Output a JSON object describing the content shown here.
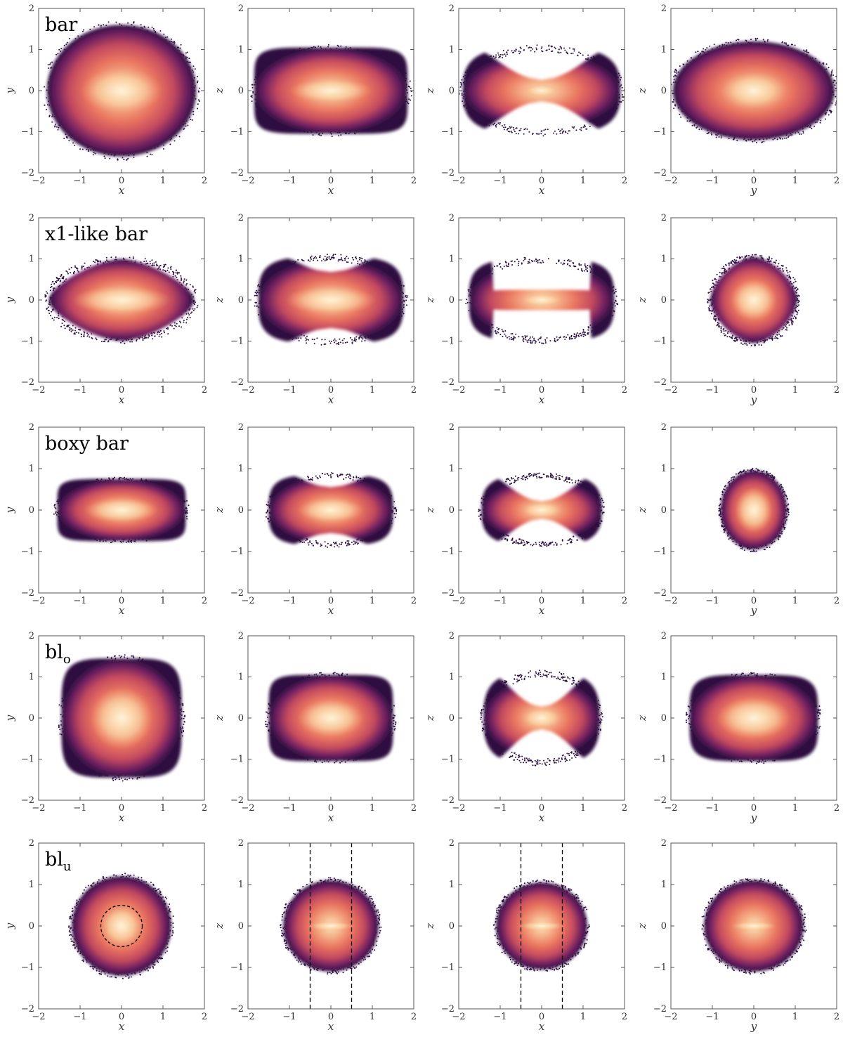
{
  "figure": {
    "colors": {
      "low": "#2d1141",
      "mid": "#c44a5f",
      "high": "#fbe5bf",
      "dashed": "#000000"
    }
  },
  "chart_data": [
    {
      "type": "heatmap",
      "row_label": "bar",
      "xlim": [
        -2,
        2
      ],
      "ylim": [
        -2,
        2
      ],
      "x_ticks": [
        "−2",
        "−1",
        "0",
        "1",
        "2"
      ],
      "y_ticks": [
        "−2",
        "−1",
        "0",
        "1",
        "2"
      ],
      "panels": [
        {
          "xlabel": "x",
          "ylabel": "y",
          "semi_axes": [
            1.8,
            1.6
          ],
          "shape": "ellipse",
          "core": [
            1.0,
            0.55
          ]
        },
        {
          "xlabel": "x",
          "ylabel": "z",
          "semi_axes": [
            1.85,
            1.05
          ],
          "shape": "capsule",
          "core": [
            1.0,
            0.3
          ]
        },
        {
          "xlabel": "x",
          "ylabel": "z",
          "semi_axes": [
            1.9,
            1.05
          ],
          "shape": "x-shape",
          "core": [
            0.4,
            0.15
          ]
        },
        {
          "xlabel": "y",
          "ylabel": "z",
          "semi_axes": [
            1.95,
            1.2
          ],
          "shape": "ellipse",
          "core": [
            0.8,
            0.45
          ]
        }
      ]
    },
    {
      "type": "heatmap",
      "row_label": "x1-like bar",
      "xlim": [
        -2,
        2
      ],
      "ylim": [
        -2,
        2
      ],
      "x_ticks": [
        "−2",
        "−1",
        "0",
        "1",
        "2"
      ],
      "y_ticks": [
        "−2",
        "−1",
        "0",
        "1",
        "2"
      ],
      "panels": [
        {
          "xlabel": "x",
          "ylabel": "y",
          "semi_axes": [
            1.75,
            1.0
          ],
          "shape": "spindle",
          "core": [
            1.2,
            0.35
          ]
        },
        {
          "xlabel": "x",
          "ylabel": "z",
          "semi_axes": [
            1.75,
            1.05
          ],
          "shape": "peanut",
          "core": [
            1.1,
            0.35
          ]
        },
        {
          "xlabel": "x",
          "ylabel": "z",
          "semi_axes": [
            1.75,
            1.0
          ],
          "shape": "dumbbell",
          "core": [
            0.5,
            0.15
          ]
        },
        {
          "xlabel": "y",
          "ylabel": "z",
          "semi_axes": [
            1.05,
            1.05
          ],
          "shape": "diamond",
          "core": [
            0.55,
            0.5
          ]
        }
      ]
    },
    {
      "type": "heatmap",
      "row_label": "boxy bar",
      "xlim": [
        -2,
        2
      ],
      "ylim": [
        -2,
        2
      ],
      "x_ticks": [
        "−2",
        "−1",
        "0",
        "1",
        "2"
      ],
      "y_ticks": [
        "−2",
        "−1",
        "0",
        "1",
        "2"
      ],
      "panels": [
        {
          "xlabel": "x",
          "ylabel": "y",
          "semi_axes": [
            1.55,
            0.75
          ],
          "shape": "capsule",
          "core": [
            0.9,
            0.3
          ]
        },
        {
          "xlabel": "x",
          "ylabel": "z",
          "semi_axes": [
            1.5,
            0.85
          ],
          "shape": "peanut",
          "core": [
            0.8,
            0.3
          ]
        },
        {
          "xlabel": "x",
          "ylabel": "z",
          "semi_axes": [
            1.45,
            0.85
          ],
          "shape": "x-shape",
          "core": [
            0.5,
            0.2
          ]
        },
        {
          "xlabel": "y",
          "ylabel": "z",
          "semi_axes": [
            0.8,
            0.95
          ],
          "shape": "ellipse",
          "core": [
            0.45,
            0.55
          ]
        }
      ]
    },
    {
      "type": "heatmap",
      "row_label": "bl",
      "row_label_sub": "o",
      "xlim": [
        -2,
        2
      ],
      "ylim": [
        -2,
        2
      ],
      "x_ticks": [
        "−2",
        "−1",
        "0",
        "1",
        "2"
      ],
      "y_ticks": [
        "−2",
        "−1",
        "0",
        "1",
        "2"
      ],
      "panels": [
        {
          "xlabel": "x",
          "ylabel": "y",
          "semi_axes": [
            1.45,
            1.45
          ],
          "shape": "squircle",
          "core": [
            0.75,
            0.75
          ]
        },
        {
          "xlabel": "x",
          "ylabel": "z",
          "semi_axes": [
            1.5,
            1.05
          ],
          "shape": "capsule",
          "core": [
            0.8,
            0.45
          ]
        },
        {
          "xlabel": "x",
          "ylabel": "z",
          "semi_axes": [
            1.4,
            1.1
          ],
          "shape": "x-shape",
          "core": [
            0.5,
            0.25
          ]
        },
        {
          "xlabel": "y",
          "ylabel": "z",
          "semi_axes": [
            1.55,
            1.05
          ],
          "shape": "squircle",
          "core": [
            0.9,
            0.5
          ]
        }
      ]
    },
    {
      "type": "heatmap",
      "row_label": "bl",
      "row_label_sub": "u",
      "xlim": [
        -2,
        2
      ],
      "ylim": [
        -2,
        2
      ],
      "x_ticks": [
        "−2",
        "−1",
        "0",
        "1",
        "2"
      ],
      "y_ticks": [
        "−2",
        "−1",
        "0",
        "1",
        "2"
      ],
      "panels": [
        {
          "xlabel": "x",
          "ylabel": "y",
          "semi_axes": [
            1.2,
            1.2
          ],
          "shape": "ellipse",
          "core": [
            0.5,
            0.5
          ],
          "dashed_circle_radius": 0.5
        },
        {
          "xlabel": "x",
          "ylabel": "z",
          "semi_axes": [
            1.15,
            1.1
          ],
          "shape": "ellipse",
          "core": [
            0.55,
            0.12
          ],
          "dashed_vlines": [
            -0.5,
            0.5
          ]
        },
        {
          "xlabel": "x",
          "ylabel": "z",
          "semi_axes": [
            1.1,
            1.05
          ],
          "shape": "ellipse",
          "core": [
            0.55,
            0.12
          ],
          "dashed_vlines": [
            -0.5,
            0.5
          ]
        },
        {
          "xlabel": "y",
          "ylabel": "z",
          "semi_axes": [
            1.2,
            1.1
          ],
          "shape": "ellipse",
          "core": [
            0.55,
            0.12
          ]
        }
      ]
    }
  ]
}
